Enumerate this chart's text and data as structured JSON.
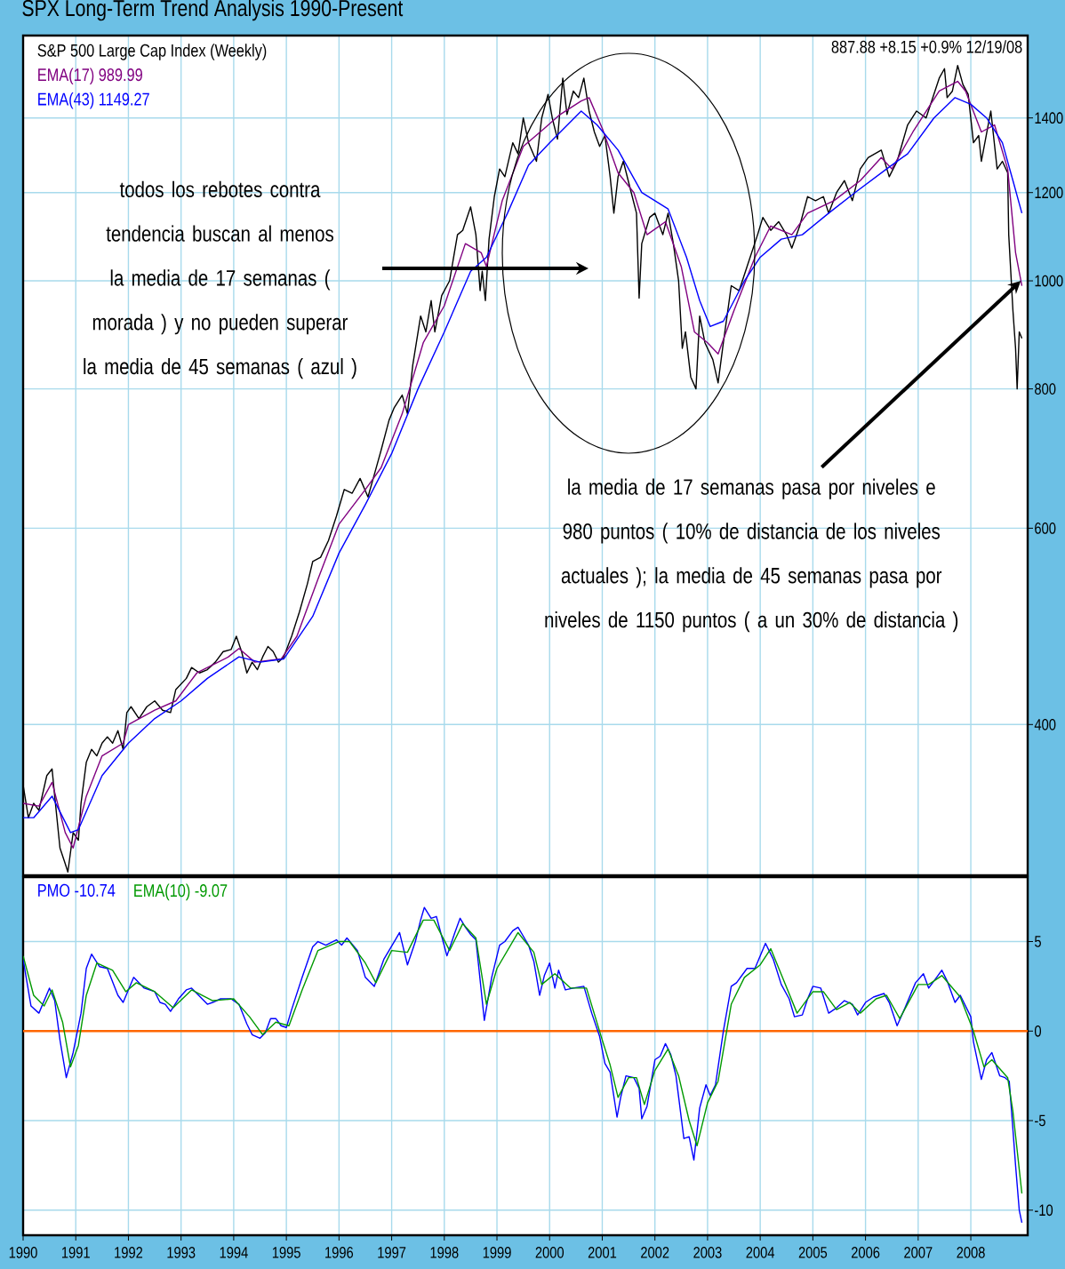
{
  "chart_data": [
    {
      "type": "line",
      "title": "SPX Long-Term Trend Analysis 1990-Present",
      "log": true,
      "grid": true,
      "legend": "top left",
      "tick_labels": "y",
      "xlim": [
        1990,
        2009.08
      ],
      "ylim": [
        293,
        1660
      ],
      "xticks": [
        1990,
        1991,
        1992,
        1993,
        1994,
        1995,
        1996,
        1997,
        1998,
        1999,
        2000,
        2001,
        2002,
        2003,
        2004,
        2005,
        2006,
        2007,
        2008
      ],
      "yticks": [
        400,
        600,
        800,
        1000,
        1200,
        1400
      ],
      "annotations": [
        "887.88 +8.15 +0.9% 12/19/08",
        "todos los rebotes contra tendencia buscan al menos la media de 17 semanas ( morada ) y no pueden superar la media de 45 semanas ( azul )",
        {
          "text": "la media de 17 semanas pasa por niveles e 980 puntos ( 10% de distancia de los niveles actuales ); la media de 45 semanas pasa por niveles de 1150 puntos ( a un 30% de distancia )",
          "x": 2008.95,
          "y": 1000
        }
      ],
      "series": [
        {
          "name": "S&P 500 Large Cap Index (Weekly)",
          "color": "#000000",
          "x": [
            1990.0,
            1990.1,
            1990.2,
            1990.3,
            1990.45,
            1990.55,
            1990.6,
            1990.7,
            1990.8,
            1990.85,
            1990.95,
            1991.05,
            1991.1,
            1991.2,
            1991.3,
            1991.4,
            1991.5,
            1991.6,
            1991.7,
            1991.8,
            1991.9,
            1991.97,
            1992.05,
            1992.2,
            1992.35,
            1992.5,
            1992.65,
            1992.8,
            1992.9,
            1993.1,
            1993.2,
            1993.35,
            1993.5,
            1993.65,
            1993.8,
            1993.95,
            1994.05,
            1994.15,
            1994.25,
            1994.35,
            1994.45,
            1994.55,
            1994.65,
            1994.75,
            1994.85,
            1994.95,
            1995.1,
            1995.25,
            1995.4,
            1995.5,
            1995.65,
            1995.8,
            1995.95,
            1996.1,
            1996.25,
            1996.4,
            1996.55,
            1996.65,
            1996.8,
            1996.95,
            1997.05,
            1997.2,
            1997.3,
            1997.4,
            1997.55,
            1997.65,
            1997.75,
            1997.82,
            1997.95,
            1998.1,
            1998.25,
            1998.35,
            1998.5,
            1998.6,
            1998.68,
            1998.72,
            1998.78,
            1998.85,
            1998.95,
            1999.05,
            1999.15,
            1999.3,
            1999.4,
            1999.5,
            1999.6,
            1999.75,
            1999.85,
            1999.97,
            2000.05,
            2000.15,
            2000.25,
            2000.33,
            2000.45,
            2000.55,
            2000.65,
            2000.75,
            2000.85,
            2000.95,
            2001.05,
            2001.15,
            2001.22,
            2001.3,
            2001.4,
            2001.55,
            2001.65,
            2001.7,
            2001.75,
            2001.9,
            2002.0,
            2002.15,
            2002.25,
            2002.35,
            2002.45,
            2002.52,
            2002.58,
            2002.68,
            2002.78,
            2002.85,
            2002.95,
            2003.1,
            2003.2,
            2003.3,
            2003.45,
            2003.6,
            2003.75,
            2003.95,
            2004.05,
            2004.2,
            2004.35,
            2004.5,
            2004.6,
            2004.75,
            2004.9,
            2005.05,
            2005.2,
            2005.3,
            2005.45,
            2005.6,
            2005.75,
            2005.9,
            2006.05,
            2006.3,
            2006.45,
            2006.6,
            2006.8,
            2006.97,
            2007.15,
            2007.4,
            2007.5,
            2007.55,
            2007.65,
            2007.75,
            2007.85,
            2007.95,
            2008.05,
            2008.15,
            2008.2,
            2008.38,
            2008.5,
            2008.6,
            2008.7,
            2008.72,
            2008.8,
            2008.85,
            2008.88,
            2008.92,
            2008.97
          ],
          "values": [
            353,
            330,
            340,
            335,
            360,
            365,
            345,
            310,
            300,
            295,
            320,
            315,
            340,
            370,
            380,
            375,
            385,
            390,
            385,
            395,
            380,
            410,
            415,
            405,
            415,
            420,
            412,
            410,
            430,
            440,
            450,
            445,
            448,
            455,
            465,
            467,
            480,
            465,
            445,
            455,
            448,
            460,
            470,
            465,
            455,
            460,
            480,
            505,
            535,
            560,
            565,
            585,
            615,
            650,
            645,
            665,
            640,
            665,
            705,
            750,
            770,
            790,
            760,
            840,
            930,
            900,
            960,
            900,
            970,
            1000,
            1100,
            1110,
            1165,
            1100,
            980,
            1020,
            960,
            1090,
            1190,
            1260,
            1240,
            1330,
            1300,
            1400,
            1330,
            1280,
            1400,
            1470,
            1400,
            1340,
            1520,
            1410,
            1480,
            1460,
            1520,
            1420,
            1360,
            1320,
            1350,
            1240,
            1150,
            1240,
            1280,
            1200,
            1150,
            965,
            1080,
            1140,
            1150,
            1100,
            1150,
            1080,
            1000,
            870,
            900,
            820,
            800,
            930,
            880,
            850,
            810,
            880,
            990,
            980,
            1030,
            1100,
            1140,
            1110,
            1130,
            1100,
            1070,
            1120,
            1190,
            1180,
            1190,
            1150,
            1200,
            1230,
            1180,
            1260,
            1290,
            1310,
            1240,
            1280,
            1380,
            1420,
            1400,
            1520,
            1550,
            1460,
            1480,
            1560,
            1500,
            1470,
            1330,
            1350,
            1280,
            1420,
            1260,
            1280,
            1250,
            1100,
            940,
            870,
            800,
            900,
            888
          ]
        },
        {
          "name": "EMA(17) 989.99",
          "color": "#800080",
          "x": [
            1990.0,
            1990.3,
            1990.55,
            1990.8,
            1990.95,
            1991.2,
            1991.5,
            1991.9,
            1992.0,
            1992.5,
            1992.9,
            1993.3,
            1993.9,
            1994.1,
            1994.4,
            1994.9,
            1995.2,
            1995.6,
            1996.0,
            1996.5,
            1996.8,
            1997.2,
            1997.6,
            1998.0,
            1998.4,
            1998.7,
            1998.8,
            1999.1,
            1999.5,
            1999.9,
            2000.2,
            2000.6,
            2000.75,
            2001.0,
            2001.3,
            2001.6,
            2001.85,
            2002.2,
            2002.5,
            2002.75,
            2003.0,
            2003.2,
            2003.5,
            2003.9,
            2004.2,
            2004.6,
            2004.9,
            2005.4,
            2005.9,
            2006.3,
            2006.5,
            2006.9,
            2007.4,
            2007.75,
            2007.9,
            2008.2,
            2008.45,
            2008.7,
            2008.85,
            2008.97
          ],
          "values": [
            340,
            338,
            355,
            320,
            310,
            345,
            375,
            385,
            400,
            412,
            420,
            445,
            460,
            468,
            455,
            458,
            480,
            540,
            605,
            650,
            680,
            760,
            880,
            950,
            1080,
            1060,
            1030,
            1180,
            1320,
            1370,
            1410,
            1450,
            1460,
            1370,
            1250,
            1200,
            1100,
            1130,
            1030,
            900,
            880,
            860,
            940,
            1050,
            1120,
            1100,
            1150,
            1180,
            1230,
            1290,
            1260,
            1360,
            1480,
            1510,
            1480,
            1360,
            1380,
            1260,
            1060,
            990
          ]
        },
        {
          "name": "EMA(43) 1149.27",
          "color": "#0000ff",
          "x": [
            1990.0,
            1990.2,
            1990.55,
            1990.9,
            1991.05,
            1991.5,
            1992.0,
            1992.5,
            1993.0,
            1993.5,
            1994.1,
            1994.5,
            1994.95,
            1995.5,
            1996.0,
            1996.5,
            1997.0,
            1997.5,
            1998.0,
            1998.5,
            1998.8,
            1999.2,
            1999.6,
            2000.0,
            2000.6,
            2000.9,
            2001.3,
            2001.75,
            2002.25,
            2002.6,
            2002.85,
            2003.05,
            2003.3,
            2003.7,
            2004.0,
            2004.4,
            2004.8,
            2005.3,
            2005.8,
            2006.4,
            2006.8,
            2007.3,
            2007.7,
            2008.0,
            2008.3,
            2008.6,
            2008.8,
            2008.97
          ],
          "values": [
            330,
            330,
            345,
            320,
            322,
            360,
            385,
            405,
            420,
            440,
            460,
            455,
            458,
            500,
            570,
            630,
            700,
            800,
            900,
            1020,
            1050,
            1150,
            1270,
            1330,
            1420,
            1380,
            1310,
            1200,
            1160,
            1050,
            960,
            910,
            920,
            1000,
            1050,
            1090,
            1100,
            1150,
            1200,
            1260,
            1300,
            1400,
            1460,
            1440,
            1400,
            1330,
            1230,
            1150
          ]
        }
      ]
    },
    {
      "type": "line",
      "grid": true,
      "legend": "top left",
      "xlim": [
        1990,
        2009.08
      ],
      "ylim": [
        -11.4,
        8.6
      ],
      "xticks": [
        1990,
        1991,
        1992,
        1993,
        1994,
        1995,
        1996,
        1997,
        1998,
        1999,
        2000,
        2001,
        2002,
        2003,
        2004,
        2005,
        2006,
        2007,
        2008
      ],
      "yticks": [
        -10,
        -5,
        0,
        5
      ],
      "ref_lines": [
        {
          "axis": "y",
          "value": 0,
          "color": "#ff6600"
        }
      ],
      "series": [
        {
          "name": "PMO -10.74",
          "color": "#0000ff",
          "x": [
            1990.0,
            1990.15,
            1990.3,
            1990.5,
            1990.6,
            1990.7,
            1990.82,
            1990.95,
            1991.1,
            1991.2,
            1991.3,
            1991.45,
            1991.6,
            1991.8,
            1991.9,
            1992.1,
            1992.3,
            1992.5,
            1992.6,
            1992.7,
            1992.8,
            1992.95,
            1993.1,
            1993.2,
            1993.4,
            1993.5,
            1993.6,
            1993.75,
            1993.95,
            1994.1,
            1994.25,
            1994.35,
            1994.5,
            1994.6,
            1994.7,
            1994.8,
            1994.9,
            1995.0,
            1995.1,
            1995.3,
            1995.5,
            1995.6,
            1995.75,
            1995.95,
            1996.05,
            1996.15,
            1996.35,
            1996.5,
            1996.67,
            1996.85,
            1997.05,
            1997.15,
            1997.3,
            1997.45,
            1997.55,
            1997.62,
            1997.75,
            1997.85,
            1997.95,
            1998.05,
            1998.2,
            1998.3,
            1998.4,
            1998.5,
            1998.6,
            1998.76,
            1998.9,
            1999.05,
            1999.15,
            1999.3,
            1999.4,
            1999.5,
            1999.6,
            1999.7,
            1999.81,
            1999.9,
            2000.0,
            2000.1,
            2000.17,
            2000.3,
            2000.45,
            2000.65,
            2000.8,
            2000.95,
            2001.05,
            2001.15,
            2001.28,
            2001.35,
            2001.45,
            2001.6,
            2001.7,
            2001.75,
            2001.85,
            2002.0,
            2002.1,
            2002.2,
            2002.3,
            2002.4,
            2002.55,
            2002.65,
            2002.74,
            2002.85,
            2002.97,
            2003.05,
            2003.15,
            2003.3,
            2003.45,
            2003.55,
            2003.75,
            2003.9,
            2004.1,
            2004.25,
            2004.4,
            2004.55,
            2004.65,
            2004.8,
            2004.9,
            2005.0,
            2005.15,
            2005.3,
            2005.45,
            2005.6,
            2005.75,
            2005.85,
            2006.0,
            2006.15,
            2006.35,
            2006.45,
            2006.6,
            2006.75,
            2006.95,
            2007.1,
            2007.2,
            2007.35,
            2007.45,
            2007.55,
            2007.7,
            2007.8,
            2008.0,
            2008.05,
            2008.15,
            2008.2,
            2008.3,
            2008.4,
            2008.55,
            2008.65,
            2008.73,
            2008.8,
            2008.85,
            2008.92,
            2008.97
          ],
          "values": [
            4.0,
            1.4,
            1.0,
            2.4,
            1.7,
            -0.5,
            -2.6,
            -1.2,
            1.0,
            3.5,
            4.3,
            3.6,
            3.5,
            2.0,
            1.6,
            3.0,
            2.4,
            2.2,
            1.6,
            1.5,
            1.1,
            1.8,
            2.3,
            2.4,
            1.8,
            1.5,
            1.6,
            1.8,
            1.8,
            1.5,
            0.4,
            -0.2,
            -0.4,
            -0.1,
            0.7,
            0.7,
            0.3,
            0.2,
            1.2,
            3.0,
            4.7,
            5.0,
            4.8,
            5.1,
            4.8,
            5.2,
            4.5,
            3.0,
            2.5,
            4.0,
            5.0,
            5.5,
            3.7,
            5.0,
            6.2,
            6.9,
            6.3,
            6.4,
            5.3,
            4.2,
            5.5,
            6.3,
            5.8,
            5.4,
            5.1,
            0.6,
            3.0,
            4.8,
            5.0,
            5.6,
            5.8,
            5.3,
            4.8,
            3.9,
            2.0,
            3.1,
            3.8,
            2.4,
            3.4,
            2.3,
            2.4,
            2.5,
            1.0,
            -0.3,
            -1.8,
            -2.3,
            -4.8,
            -3.7,
            -2.5,
            -2.6,
            -3.2,
            -4.9,
            -4.2,
            -1.6,
            -1.4,
            -0.7,
            -1.3,
            -2.5,
            -6.0,
            -5.9,
            -7.2,
            -4.3,
            -3.0,
            -3.6,
            -3.0,
            0.0,
            2.5,
            2.7,
            3.5,
            3.5,
            4.9,
            4.0,
            2.6,
            1.8,
            0.8,
            0.9,
            1.8,
            2.5,
            2.4,
            1.0,
            1.3,
            1.7,
            1.5,
            0.9,
            1.6,
            1.9,
            2.1,
            1.6,
            0.3,
            1.3,
            2.7,
            3.2,
            2.4,
            3.0,
            3.4,
            2.8,
            1.6,
            2.0,
            0.8,
            -0.6,
            -2.0,
            -2.7,
            -1.6,
            -1.2,
            -2.5,
            -2.6,
            -2.8,
            -5.5,
            -7.5,
            -10.0,
            -10.7
          ]
        },
        {
          "name": "EMA(10) -9.07",
          "color": "#009900",
          "x": [
            1990.0,
            1990.2,
            1990.4,
            1990.55,
            1990.75,
            1990.9,
            1991.05,
            1991.2,
            1991.4,
            1991.7,
            1991.95,
            1992.15,
            1992.5,
            1992.85,
            1993.2,
            1993.6,
            1994.0,
            1994.3,
            1994.55,
            1994.8,
            1995.05,
            1995.3,
            1995.6,
            1996.0,
            1996.2,
            1996.5,
            1996.7,
            1997.0,
            1997.3,
            1997.6,
            1997.8,
            1998.1,
            1998.35,
            1998.6,
            1998.8,
            1999.0,
            1999.4,
            1999.7,
            1999.85,
            2000.1,
            2000.4,
            2000.7,
            2001.0,
            2001.15,
            2001.3,
            2001.5,
            2001.65,
            2001.8,
            2002.0,
            2002.25,
            2002.45,
            2002.65,
            2002.8,
            2003.0,
            2003.2,
            2003.45,
            2003.7,
            2004.0,
            2004.2,
            2004.45,
            2004.7,
            2005.0,
            2005.2,
            2005.45,
            2005.7,
            2005.9,
            2006.2,
            2006.4,
            2006.65,
            2007.0,
            2007.2,
            2007.45,
            2007.8,
            2008.05,
            2008.25,
            2008.4,
            2008.7,
            2008.8,
            2008.97
          ],
          "values": [
            4.2,
            2.0,
            1.4,
            2.3,
            0.5,
            -2.0,
            -0.8,
            2.0,
            3.8,
            3.4,
            2.2,
            2.7,
            2.2,
            1.3,
            2.3,
            1.7,
            1.8,
            0.8,
            -0.2,
            0.5,
            0.3,
            2.3,
            4.5,
            5.0,
            5.0,
            3.8,
            2.7,
            4.5,
            4.4,
            6.2,
            6.2,
            4.5,
            6.0,
            5.2,
            1.5,
            3.5,
            5.5,
            4.4,
            2.6,
            3.2,
            2.4,
            2.4,
            -0.5,
            -1.9,
            -3.7,
            -2.6,
            -2.6,
            -4.1,
            -2.2,
            -1.0,
            -2.5,
            -5.0,
            -6.4,
            -4.0,
            -2.8,
            1.5,
            3.0,
            3.7,
            4.6,
            2.8,
            1.0,
            2.2,
            2.2,
            1.2,
            1.6,
            1.0,
            1.8,
            2.0,
            0.7,
            2.6,
            2.6,
            3.1,
            1.9,
            0.0,
            -2.0,
            -1.6,
            -2.6,
            -4.5,
            -9.07
          ]
        }
      ]
    }
  ]
}
